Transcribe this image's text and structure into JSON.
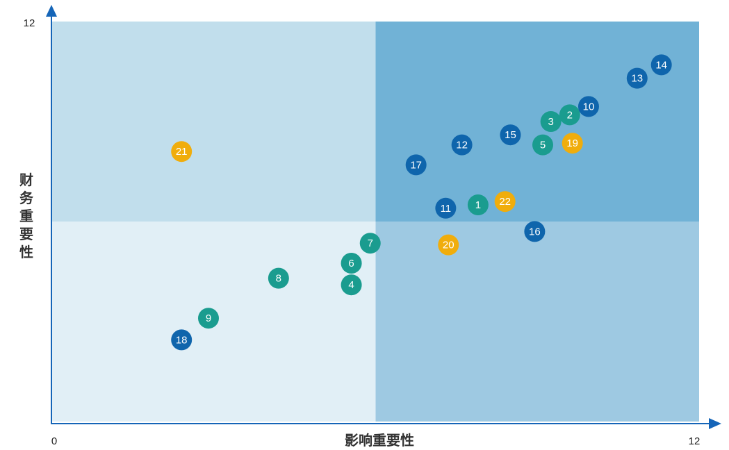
{
  "chart_data": {
    "type": "scatter",
    "xlabel": "影响重要性",
    "ylabel": "财务重要性",
    "xlim": [
      0,
      12
    ],
    "ylim": [
      0,
      12
    ],
    "x_ticks": [
      "0",
      "12"
    ],
    "y_ticks": [
      "12"
    ],
    "grid": false,
    "quadrant_split": {
      "x": 6,
      "y": 6
    },
    "colors": {
      "teal": "#1a9c8f",
      "blue": "#0f65ac",
      "yellow": "#f0ad0c",
      "axis": "#1565b8",
      "quadrant_low_low": "#e1eff6",
      "quadrant_low_high": "#c1deec",
      "quadrant_high_low": "#9ec9e2",
      "quadrant_high_high": "#71b2d6"
    },
    "points": [
      {
        "label": "1",
        "x": 7.9,
        "y": 6.5,
        "color": "teal"
      },
      {
        "label": "2",
        "x": 9.6,
        "y": 9.2,
        "color": "teal"
      },
      {
        "label": "3",
        "x": 9.25,
        "y": 9.0,
        "color": "teal"
      },
      {
        "label": "4",
        "x": 5.55,
        "y": 4.1,
        "color": "teal"
      },
      {
        "label": "5",
        "x": 9.1,
        "y": 8.3,
        "color": "teal"
      },
      {
        "label": "6",
        "x": 5.55,
        "y": 4.75,
        "color": "teal"
      },
      {
        "label": "7",
        "x": 5.9,
        "y": 5.35,
        "color": "teal"
      },
      {
        "label": "8",
        "x": 4.2,
        "y": 4.3,
        "color": "teal"
      },
      {
        "label": "9",
        "x": 2.9,
        "y": 3.1,
        "color": "teal"
      },
      {
        "label": "10",
        "x": 9.95,
        "y": 9.45,
        "color": "blue"
      },
      {
        "label": "11",
        "x": 7.3,
        "y": 6.4,
        "color": "blue"
      },
      {
        "label": "12",
        "x": 7.6,
        "y": 8.3,
        "color": "blue"
      },
      {
        "label": "13",
        "x": 10.85,
        "y": 10.3,
        "color": "blue"
      },
      {
        "label": "14",
        "x": 11.3,
        "y": 10.7,
        "color": "blue"
      },
      {
        "label": "15",
        "x": 8.5,
        "y": 8.6,
        "color": "blue"
      },
      {
        "label": "16",
        "x": 8.95,
        "y": 5.7,
        "color": "blue"
      },
      {
        "label": "17",
        "x": 6.75,
        "y": 7.7,
        "color": "blue"
      },
      {
        "label": "18",
        "x": 2.4,
        "y": 2.45,
        "color": "blue"
      },
      {
        "label": "19",
        "x": 9.65,
        "y": 8.35,
        "color": "yellow"
      },
      {
        "label": "20",
        "x": 7.35,
        "y": 5.3,
        "color": "yellow"
      },
      {
        "label": "21",
        "x": 2.4,
        "y": 8.1,
        "color": "yellow"
      },
      {
        "label": "22",
        "x": 8.4,
        "y": 6.6,
        "color": "yellow"
      }
    ]
  }
}
